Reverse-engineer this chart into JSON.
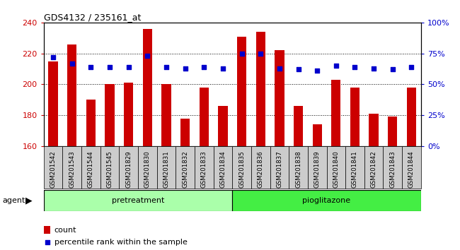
{
  "title": "GDS4132 / 235161_at",
  "samples": [
    "GSM201542",
    "GSM201543",
    "GSM201544",
    "GSM201545",
    "GSM201829",
    "GSM201830",
    "GSM201831",
    "GSM201832",
    "GSM201833",
    "GSM201834",
    "GSM201835",
    "GSM201836",
    "GSM201837",
    "GSM201838",
    "GSM201839",
    "GSM201840",
    "GSM201841",
    "GSM201842",
    "GSM201843",
    "GSM201844"
  ],
  "counts": [
    215,
    226,
    190,
    200,
    201,
    236,
    200,
    178,
    198,
    186,
    231,
    234,
    222,
    186,
    174,
    203,
    198,
    181,
    179,
    198
  ],
  "percentiles": [
    72,
    67,
    64,
    64,
    64,
    73,
    64,
    63,
    64,
    63,
    75,
    75,
    63,
    62,
    61,
    65,
    64,
    63,
    62,
    64
  ],
  "pretreatment_count": 10,
  "pioglitazone_count": 10,
  "ylim_left": [
    160,
    240
  ],
  "ylim_right": [
    0,
    100
  ],
  "yticks_left": [
    160,
    180,
    200,
    220,
    240
  ],
  "yticks_right": [
    0,
    25,
    50,
    75,
    100
  ],
  "ytick_labels_right": [
    "0%",
    "25%",
    "50%",
    "75%",
    "100%"
  ],
  "bar_color": "#cc0000",
  "scatter_color": "#0000cc",
  "pretreatment_color": "#aaffaa",
  "pioglitazone_color": "#44ee44",
  "cell_bg_color": "#cccccc",
  "bg_color": "#ffffff",
  "tick_color_left": "#cc0000",
  "tick_color_right": "#0000cc",
  "bar_width": 0.5
}
